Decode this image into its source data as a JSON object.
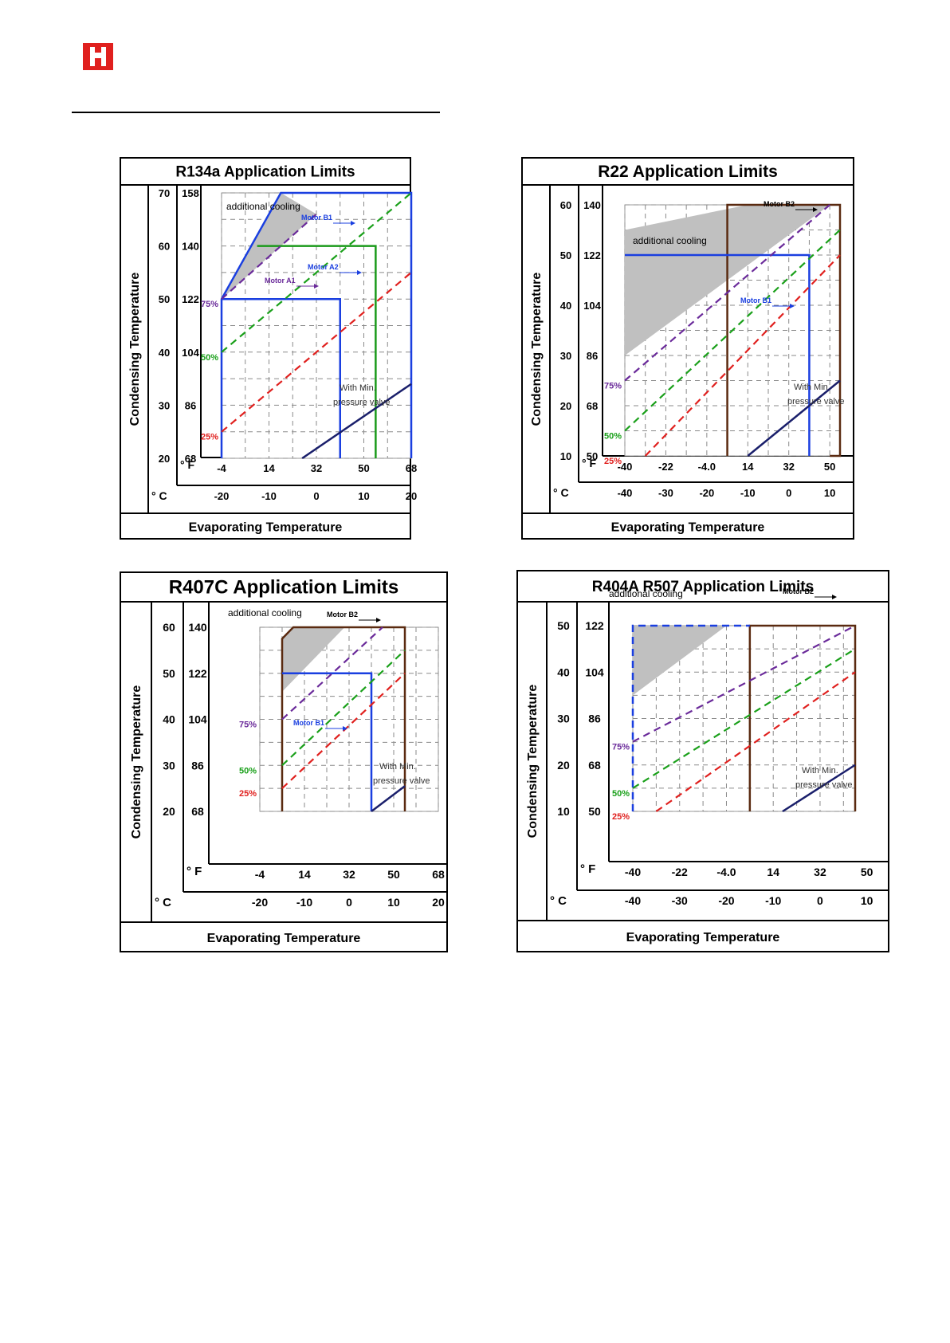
{
  "colors": {
    "logo_red": "#e0201e",
    "envelope_blue": "#1a3fe0",
    "motor_a2_green": "#1a9a1a",
    "b_frame_brown": "#5a2a10",
    "min_pressure_navy": "#1a1f6b",
    "line_75": "#6a2a9a",
    "line_50": "#1aa01a",
    "line_25": "#e0201e",
    "cooling_fill": "#c0c0c0"
  },
  "header": {
    "logo_icon": "company-logo-icon"
  },
  "charts": [
    {
      "key": "r134a",
      "title": "R134a  Application Limits",
      "y_axis_title": "Condensing Temperature",
      "x_axis_title": "Evaporating Temperature",
      "x_unit_f": "° F",
      "x_unit_c": "° C",
      "x_ticks_f": [
        "-4",
        "14",
        "32",
        "50",
        "68"
      ],
      "x_ticks_c": [
        "-20",
        "-10",
        "0",
        "10",
        "20"
      ],
      "y_ticks_c": [
        "70",
        "60",
        "50",
        "40",
        "30",
        "20"
      ],
      "y_ticks_f": [
        "158",
        "140",
        "122",
        "104",
        "86",
        "68"
      ],
      "pct_labels": [
        "75%",
        "50%",
        "25%"
      ],
      "annotations": [
        "additional cooling",
        "Motor B1",
        "Motor A2",
        "Motor A1"
      ],
      "note_line1": "With  Min.",
      "note_line2": "pressure  valve"
    },
    {
      "key": "r22",
      "title": "R22  Application Limits",
      "y_axis_title": "Condensing Temperature",
      "x_axis_title": "Evaporating Temperature",
      "x_unit_f": "° F",
      "x_unit_c": "° C",
      "x_ticks_f": [
        "-40",
        "-22",
        "-4.0",
        "14",
        "32",
        "50"
      ],
      "x_ticks_c": [
        "-40",
        "-30",
        "-20",
        "-10",
        "0",
        "10"
      ],
      "y_ticks_c": [
        "60",
        "50",
        "40",
        "30",
        "20",
        "10"
      ],
      "y_ticks_f": [
        "140",
        "122",
        "104",
        "86",
        "68",
        "50"
      ],
      "pct_labels": [
        "75%",
        "50%",
        "25%"
      ],
      "annotations": [
        "additional cooling",
        "Motor B2",
        "Motor B1"
      ],
      "note_line1": "With  Min.",
      "note_line2": "pressure  valve"
    },
    {
      "key": "r407c",
      "title": "R407C  Application Limits",
      "y_axis_title": "Condensing Temperature",
      "x_axis_title": "Evaporating Temperature",
      "x_unit_f": "° F",
      "x_unit_c": "° C",
      "x_ticks_f": [
        "-4",
        "14",
        "32",
        "50",
        "68"
      ],
      "x_ticks_c": [
        "-20",
        "-10",
        "0",
        "10",
        "20"
      ],
      "y_ticks_c": [
        "60",
        "50",
        "40",
        "30",
        "20"
      ],
      "y_ticks_f": [
        "140",
        "122",
        "104",
        "86",
        "68"
      ],
      "pct_labels": [
        "75%",
        "50%",
        "25%"
      ],
      "annotations": [
        "additional cooling",
        "Motor B2",
        "Motor B1"
      ],
      "note_line1": "With Min.",
      "note_line2": "pressure valve"
    },
    {
      "key": "r404a",
      "title": "R404A R507  Application Limits",
      "y_axis_title": "Condensing Temperature",
      "x_axis_title": "Evaporating Temperature",
      "x_unit_f": "° F",
      "x_unit_c": "° C",
      "x_ticks_f": [
        "-40",
        "-22",
        "-4.0",
        "14",
        "32",
        "50"
      ],
      "x_ticks_c": [
        "-40",
        "-30",
        "-20",
        "-10",
        "0",
        "10"
      ],
      "y_ticks_c": [
        "50",
        "40",
        "30",
        "20",
        "10"
      ],
      "y_ticks_f": [
        "122",
        "104",
        "86",
        "68",
        "50"
      ],
      "pct_labels": [
        "75%",
        "50%",
        "25%"
      ],
      "annotations": [
        "additional cooling",
        "Motor B2"
      ],
      "note_line1": "With  Min.",
      "note_line2": "pressure  valve"
    }
  ],
  "chart_data": [
    {
      "type": "line",
      "title": "R134a  Application Limits",
      "xlabel": "Evaporating Temperature",
      "ylabel": "Condensing Temperature",
      "x_unit": "°C",
      "y_unit": "°C",
      "xlim": [
        -20,
        20
      ],
      "ylim": [
        20,
        70
      ],
      "grid": true,
      "series": [
        {
          "name": "Motor B1",
          "style": "envelope",
          "color": "blue",
          "dashed": false,
          "points": [
            [
              -20,
              20
            ],
            [
              -20,
              50
            ],
            [
              -7.5,
              70
            ],
            [
              20,
              70
            ],
            [
              20,
              20
            ]
          ]
        },
        {
          "name": "Motor A2",
          "style": "envelope",
          "color": "green",
          "dashed": false,
          "points": [
            [
              -12.5,
              60
            ],
            [
              12.5,
              60
            ],
            [
              12.5,
              20
            ]
          ]
        },
        {
          "name": "Motor A1",
          "style": "envelope",
          "color": "blue",
          "dashed": false,
          "points": [
            [
              -20,
              50
            ],
            [
              5,
              50
            ],
            [
              5,
              20
            ]
          ]
        },
        {
          "name": "additional cooling",
          "style": "shaded",
          "points": [
            [
              -20,
              50
            ],
            [
              -7.5,
              70
            ],
            [
              0,
              66
            ]
          ]
        },
        {
          "name": "75%",
          "dashed": true,
          "color": "purple",
          "points": [
            [
              -20,
              50
            ],
            [
              0,
              66
            ]
          ]
        },
        {
          "name": "50%",
          "dashed": true,
          "color": "green",
          "points": [
            [
              -20,
              40
            ],
            [
              20,
              70
            ]
          ]
        },
        {
          "name": "25%",
          "dashed": true,
          "color": "red",
          "points": [
            [
              -20,
              25
            ],
            [
              20,
              55
            ]
          ]
        },
        {
          "name": "With  Min. pressure  valve",
          "dashed": false,
          "color": "navy",
          "points": [
            [
              -3,
              20
            ],
            [
              20,
              34
            ]
          ]
        }
      ]
    },
    {
      "type": "line",
      "title": "R22  Application Limits",
      "xlabel": "Evaporating Temperature",
      "ylabel": "Condensing Temperature",
      "x_unit": "°C",
      "y_unit": "°C",
      "xlim": [
        -40,
        12.5
      ],
      "ylim": [
        10,
        60
      ],
      "grid": true,
      "series": [
        {
          "name": "Motor B2",
          "style": "envelope",
          "color": "brown",
          "dashed": false,
          "points": [
            [
              -15,
              10
            ],
            [
              -15,
              60
            ],
            [
              12.5,
              60
            ],
            [
              12.5,
              10
            ],
            [
              10,
              10
            ]
          ]
        },
        {
          "name": "Motor B1",
          "style": "envelope",
          "color": "blue",
          "dashed": false,
          "points": [
            [
              -40,
              50
            ],
            [
              5,
              50
            ],
            [
              5,
              10
            ]
          ]
        },
        {
          "name": "additional cooling",
          "style": "shaded",
          "points": [
            [
              -40,
              55
            ],
            [
              -10,
              60
            ],
            [
              10,
              60
            ],
            [
              -40,
              30
            ]
          ]
        },
        {
          "name": "75%",
          "dashed": true,
          "color": "purple",
          "points": [
            [
              -40,
              25
            ],
            [
              10,
              60
            ]
          ]
        },
        {
          "name": "50%",
          "dashed": true,
          "color": "green",
          "points": [
            [
              -40,
              15
            ],
            [
              12.5,
              55
            ]
          ]
        },
        {
          "name": "25%",
          "dashed": true,
          "color": "red",
          "points": [
            [
              -35,
              10
            ],
            [
              12.5,
              50
            ]
          ]
        },
        {
          "name": "With  Min. pressure  valve",
          "dashed": false,
          "color": "navy",
          "points": [
            [
              -10,
              10
            ],
            [
              12.5,
              25
            ]
          ]
        }
      ]
    },
    {
      "type": "line",
      "title": "R407C  Application Limits",
      "xlabel": "Evaporating Temperature",
      "ylabel": "Condensing Temperature",
      "x_unit": "°C",
      "y_unit": "°C",
      "xlim": [
        -20,
        20
      ],
      "ylim": [
        20,
        60
      ],
      "grid": true,
      "series": [
        {
          "name": "Motor B2",
          "style": "envelope",
          "color": "brown",
          "dashed": false,
          "points": [
            [
              -15,
              20
            ],
            [
              -15,
              57.5
            ],
            [
              -12.5,
              60
            ],
            [
              12.5,
              60
            ],
            [
              12.5,
              20
            ]
          ]
        },
        {
          "name": "Motor B1",
          "style": "envelope",
          "color": "blue",
          "dashed": false,
          "points": [
            [
              -15,
              50
            ],
            [
              5,
              50
            ],
            [
              5,
              20
            ]
          ]
        },
        {
          "name": "additional cooling",
          "style": "shaded",
          "points": [
            [
              -15,
              57.5
            ],
            [
              -12.5,
              60
            ],
            [
              -1,
              60
            ],
            [
              -15,
              46
            ]
          ]
        },
        {
          "name": "75%",
          "dashed": true,
          "color": "purple",
          "points": [
            [
              -15,
              40
            ],
            [
              7.5,
              60
            ]
          ]
        },
        {
          "name": "50%",
          "dashed": true,
          "color": "green",
          "points": [
            [
              -15,
              30
            ],
            [
              12.5,
              55
            ]
          ]
        },
        {
          "name": "25%",
          "dashed": true,
          "color": "red",
          "points": [
            [
              -15,
              25
            ],
            [
              12.5,
              50
            ]
          ]
        },
        {
          "name": "With Min. pressure valve",
          "dashed": false,
          "color": "navy",
          "points": [
            [
              5,
              20
            ],
            [
              12.5,
              25.5
            ]
          ]
        }
      ]
    },
    {
      "type": "line",
      "title": "R404A R507  Application Limits",
      "xlabel": "Evaporating Temperature",
      "ylabel": "Condensing Temperature",
      "x_unit": "°C",
      "y_unit": "°C",
      "xlim": [
        -40,
        7.5
      ],
      "ylim": [
        10,
        50
      ],
      "grid": true,
      "series": [
        {
          "name": "Motor B2",
          "style": "envelope",
          "color": "brown",
          "dashed": false,
          "points": [
            [
              -15,
              10
            ],
            [
              -15,
              50
            ],
            [
              7.5,
              50
            ],
            [
              7.5,
              10
            ]
          ]
        },
        {
          "name": "additional cooling envelope",
          "style": "envelope",
          "color": "blue",
          "dashed": true,
          "points": [
            [
              -40,
              10
            ],
            [
              -40,
              50
            ],
            [
              -15,
              50
            ]
          ]
        },
        {
          "name": "additional cooling",
          "style": "shaded",
          "points": [
            [
              -40,
              50
            ],
            [
              -20,
              50
            ],
            [
              -40,
              35
            ]
          ]
        },
        {
          "name": "75%",
          "dashed": true,
          "color": "purple",
          "points": [
            [
              -40,
              25
            ],
            [
              7.5,
              50
            ]
          ]
        },
        {
          "name": "50%",
          "dashed": true,
          "color": "green",
          "points": [
            [
              -40,
              15
            ],
            [
              7.5,
              45
            ]
          ]
        },
        {
          "name": "25%",
          "dashed": true,
          "color": "red",
          "points": [
            [
              -35,
              10
            ],
            [
              7.5,
              40
            ]
          ]
        },
        {
          "name": "With  Min. pressure  valve",
          "dashed": false,
          "color": "navy",
          "points": [
            [
              -8,
              10
            ],
            [
              7.5,
              20
            ]
          ]
        }
      ]
    }
  ]
}
